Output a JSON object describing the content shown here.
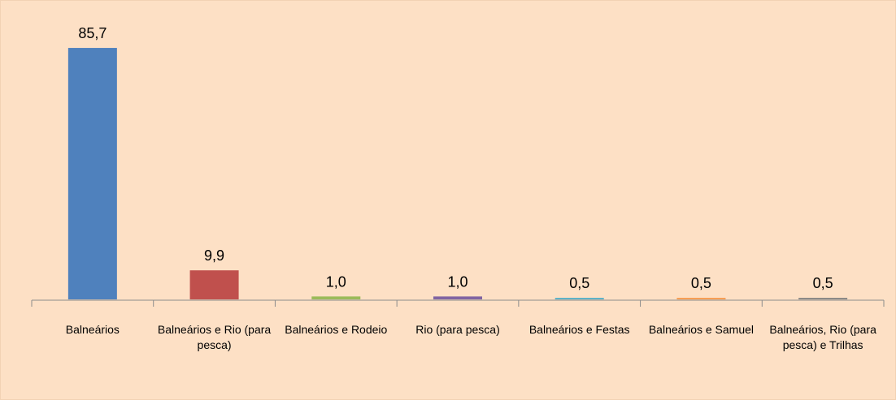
{
  "chart_data": {
    "type": "bar",
    "categories": [
      "Balneários",
      "Balneários e Rio (para pesca)",
      "Balneários e Rodeio",
      "Rio (para pesca)",
      "Balneários e Festas",
      "Balneários e Samuel",
      "Balneários, Rio (para pesca) e Trilhas"
    ],
    "values": [
      85.7,
      9.9,
      1.0,
      1.0,
      0.5,
      0.5,
      0.5
    ],
    "value_labels": [
      "85,7",
      "9,9",
      "1,0",
      "1,0",
      "0,5",
      "0,5",
      "0,5"
    ],
    "colors": [
      "#4f81bd",
      "#c0504d",
      "#9bbb59",
      "#8064a2",
      "#4bacc6",
      "#f79646",
      "#7f7f7f"
    ],
    "ylim": [
      0,
      90
    ]
  }
}
